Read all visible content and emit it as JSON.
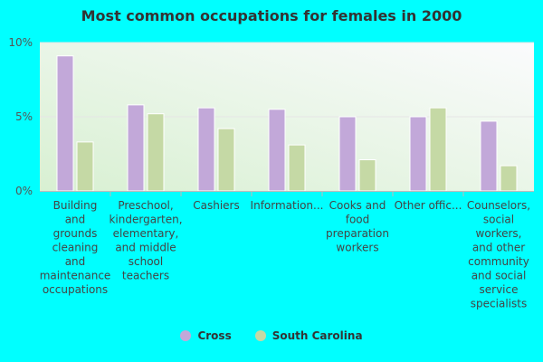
{
  "chart_data": {
    "type": "bar",
    "title": "Most common occupations for females in 2000",
    "xlabel": "",
    "ylabel": "",
    "ylim": [
      0,
      10
    ],
    "yticks": [
      {
        "value": 0,
        "label": "0%"
      },
      {
        "value": 5,
        "label": "5%"
      },
      {
        "value": 10,
        "label": "10%"
      }
    ],
    "categories": [
      "Building\nand\ngrounds\ncleaning\nand\nmaintenance\noccupations",
      "Preschool,\nkindergarten,\nelementary,\nand middle\nschool\nteachers",
      "Cashiers",
      "Information...",
      "Cooks and\nfood\npreparation\nworkers",
      "Other offic...",
      "Counselors,\nsocial\nworkers,\nand other\ncommunity\nand social\nservice\nspecialists"
    ],
    "series": [
      {
        "name": "Cross",
        "color": "#c2a8d9",
        "values": [
          9.1,
          5.8,
          5.6,
          5.5,
          5.0,
          5.0,
          4.7
        ]
      },
      {
        "name": "South Carolina",
        "color": "#c5d9a5",
        "values": [
          3.3,
          5.2,
          4.2,
          3.1,
          2.1,
          5.6,
          1.7
        ]
      }
    ],
    "legend": "bottom",
    "grid": true
  }
}
